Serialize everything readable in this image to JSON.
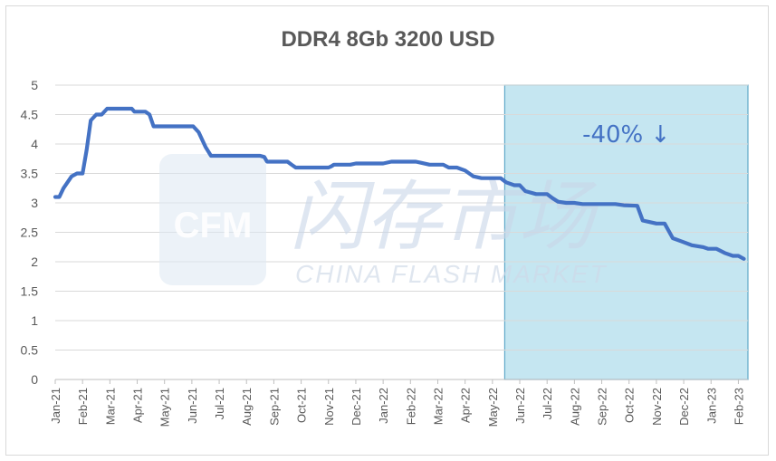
{
  "chart_data": {
    "type": "line",
    "title": "DDR4 8Gb 3200 USD",
    "xlabel": "",
    "ylabel": "",
    "ylim": [
      0,
      5
    ],
    "yticks": [
      "0",
      "0.5",
      "1",
      "1.5",
      "2",
      "2.5",
      "3",
      "3.5",
      "4",
      "4.5",
      "5"
    ],
    "categories": [
      "Jan-21",
      "Feb-21",
      "Mar-21",
      "Apr-21",
      "May-21",
      "Jun-21",
      "Jul-21",
      "Aug-21",
      "Sep-21",
      "Oct-21",
      "Nov-21",
      "Dec-21",
      "Jan-22",
      "Feb-22",
      "Mar-22",
      "Apr-22",
      "May-22",
      "Jun-22",
      "Jul-22",
      "Aug-22",
      "Sep-22",
      "Oct-22",
      "Nov-22",
      "Dec-22",
      "Jan-23",
      "Feb-23"
    ],
    "series": [
      {
        "color": "#4472c4",
        "points": [
          [
            0.0,
            3.1
          ],
          [
            0.15,
            3.1
          ],
          [
            0.3,
            3.25
          ],
          [
            0.6,
            3.45
          ],
          [
            0.8,
            3.5
          ],
          [
            1.0,
            3.5
          ],
          [
            1.15,
            3.9
          ],
          [
            1.3,
            4.4
          ],
          [
            1.5,
            4.5
          ],
          [
            1.7,
            4.5
          ],
          [
            1.9,
            4.6
          ],
          [
            2.2,
            4.6
          ],
          [
            2.5,
            4.6
          ],
          [
            2.8,
            4.6
          ],
          [
            2.9,
            4.55
          ],
          [
            3.1,
            4.55
          ],
          [
            3.3,
            4.55
          ],
          [
            3.45,
            4.5
          ],
          [
            3.6,
            4.3
          ],
          [
            4.0,
            4.3
          ],
          [
            4.5,
            4.3
          ],
          [
            5.05,
            4.3
          ],
          [
            5.25,
            4.2
          ],
          [
            5.5,
            3.95
          ],
          [
            5.7,
            3.8
          ],
          [
            6.0,
            3.8
          ],
          [
            6.5,
            3.8
          ],
          [
            7.0,
            3.8
          ],
          [
            7.5,
            3.8
          ],
          [
            7.65,
            3.78
          ],
          [
            7.75,
            3.7
          ],
          [
            8.2,
            3.7
          ],
          [
            8.5,
            3.7
          ],
          [
            8.65,
            3.65
          ],
          [
            8.8,
            3.6
          ],
          [
            9.2,
            3.6
          ],
          [
            9.6,
            3.6
          ],
          [
            10.0,
            3.6
          ],
          [
            10.1,
            3.62
          ],
          [
            10.2,
            3.65
          ],
          [
            10.5,
            3.65
          ],
          [
            10.8,
            3.65
          ],
          [
            11.0,
            3.67
          ],
          [
            11.5,
            3.67
          ],
          [
            12.0,
            3.67
          ],
          [
            12.3,
            3.7
          ],
          [
            12.8,
            3.7
          ],
          [
            13.0,
            3.7
          ],
          [
            13.2,
            3.7
          ],
          [
            13.4,
            3.68
          ],
          [
            13.7,
            3.65
          ],
          [
            14.2,
            3.65
          ],
          [
            14.4,
            3.6
          ],
          [
            14.7,
            3.6
          ],
          [
            15.0,
            3.55
          ],
          [
            15.3,
            3.45
          ],
          [
            15.6,
            3.42
          ],
          [
            16.0,
            3.42
          ],
          [
            16.3,
            3.42
          ],
          [
            16.5,
            3.35
          ],
          [
            16.8,
            3.3
          ],
          [
            17.0,
            3.3
          ],
          [
            17.2,
            3.2
          ],
          [
            17.6,
            3.15
          ],
          [
            18.0,
            3.15
          ],
          [
            18.2,
            3.08
          ],
          [
            18.4,
            3.02
          ],
          [
            18.7,
            3.0
          ],
          [
            19.0,
            3.0
          ],
          [
            19.3,
            2.98
          ],
          [
            20.0,
            2.98
          ],
          [
            20.5,
            2.98
          ],
          [
            20.8,
            2.96
          ],
          [
            21.3,
            2.95
          ],
          [
            21.5,
            2.7
          ],
          [
            21.7,
            2.68
          ],
          [
            22.0,
            2.65
          ],
          [
            22.3,
            2.65
          ],
          [
            22.6,
            2.4
          ],
          [
            22.9,
            2.35
          ],
          [
            23.3,
            2.28
          ],
          [
            23.7,
            2.25
          ],
          [
            23.9,
            2.22
          ],
          [
            24.2,
            2.22
          ],
          [
            24.5,
            2.15
          ],
          [
            24.8,
            2.1
          ],
          [
            25.0,
            2.1
          ],
          [
            25.2,
            2.05
          ]
        ]
      }
    ],
    "highlight": {
      "x_start": 16.45,
      "x_end": 25.35,
      "fill": "#c5e6f1",
      "border": "#5ea8c9",
      "annotation": "-40% ↓",
      "annotation_color": "#4472c4"
    },
    "grid": true,
    "legend": "none"
  },
  "watermark": {
    "logo": "CFM",
    "cn_text": "闪存市场",
    "en_text": "CHINA FLASH MARKET"
  }
}
